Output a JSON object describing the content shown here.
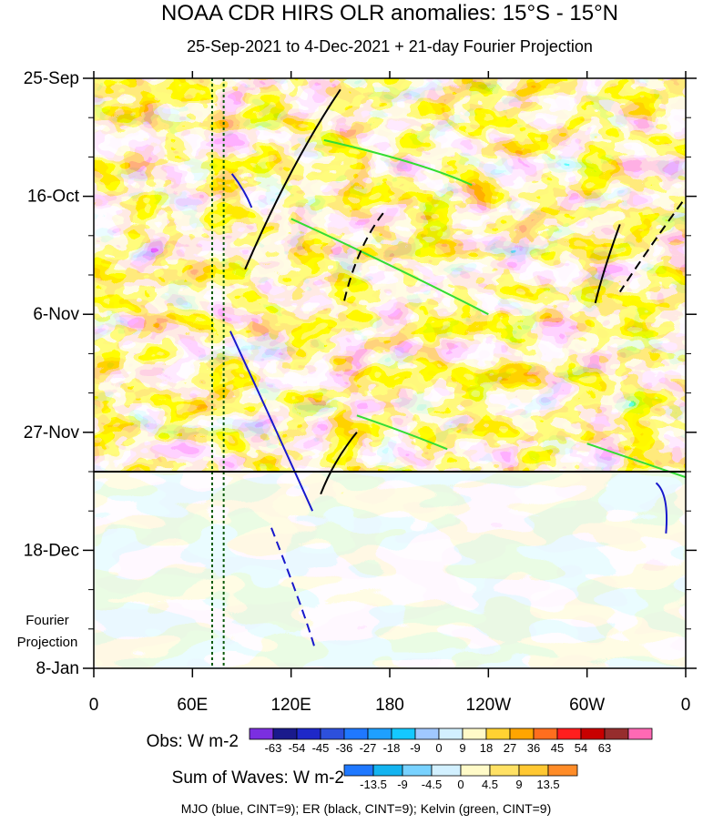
{
  "chart_data": {
    "type": "heatmap",
    "title": "NOAA CDR HIRS OLR anomalies: 15°S - 15°N",
    "subtitle": "25-Sep-2021 to 4-Dec-2021 + 21-day Fourier Projection",
    "x_ticks": [
      "0",
      "60E",
      "120E",
      "180",
      "120W",
      "60W",
      "0"
    ],
    "x_tick_values": [
      0,
      60,
      120,
      180,
      240,
      300,
      360
    ],
    "xlim": [
      0,
      360
    ],
    "y_ticks": [
      "25-Sep",
      "16-Oct",
      "6-Nov",
      "27-Nov",
      "18-Dec",
      "8-Jan"
    ],
    "y_tick_values": [
      0,
      21,
      42,
      63,
      84,
      105
    ],
    "ylim": [
      0,
      105
    ],
    "observed_end_day": 70,
    "projection_label": [
      "Fourier",
      "Projection"
    ],
    "dotted_lines_lon": [
      72,
      79
    ],
    "legend_obs": {
      "label": "Obs: W m-2",
      "ticks": [
        "-63",
        "-54",
        "-45",
        "-36",
        "-27",
        "-18",
        "-9",
        "0",
        "9",
        "18",
        "27",
        "36",
        "45",
        "54",
        "63"
      ],
      "colors": [
        "#7b2fe0",
        "#1a1a8c",
        "#1e28c8",
        "#2d50dc",
        "#1f78ff",
        "#1ea0ff",
        "#14c8ff",
        "#a0c8ff",
        "#d2f0ff",
        "#fffac8",
        "#ffd232",
        "#ffa500",
        "#ff6e1e",
        "#ff1e1e",
        "#c80000",
        "#962d2d",
        "#ff69b4"
      ]
    },
    "legend_waves": {
      "label": "Sum of Waves: W m-2",
      "ticks": [
        "-13.5",
        "-9",
        "-4.5",
        "0",
        "4.5",
        "9",
        "13.5"
      ],
      "colors": [
        "#1f78ff",
        "#14b4f0",
        "#78d2ff",
        "#d2f0ff",
        "#fffac8",
        "#ffe164",
        "#ffc832",
        "#ff8c28"
      ]
    },
    "footnote": "MJO (blue, CINT=9); ER (black, CINT=9); Kelvin (green, CINT=9)",
    "mjo_contours": [
      {
        "lon": [
          84,
          92,
          96
        ],
        "day": [
          17,
          20,
          23
        ],
        "style": "solid"
      },
      {
        "lon": [
          83,
          110,
          133
        ],
        "day": [
          45,
          62,
          77
        ],
        "style": "solid"
      },
      {
        "lon": [
          108,
          128,
          134
        ],
        "day": [
          80,
          95,
          101
        ],
        "style": "dashed"
      },
      {
        "lon": [
          342,
          350,
          348
        ],
        "day": [
          72,
          74,
          81
        ],
        "style": "solid"
      }
    ],
    "er_contours": [
      {
        "lon": [
          150,
          120,
          92
        ],
        "day": [
          2,
          15,
          34
        ],
        "style": "solid"
      },
      {
        "lon": [
          160,
          146,
          138
        ],
        "day": [
          63,
          68,
          74
        ],
        "style": "solid"
      },
      {
        "lon": [
          176,
          160,
          152
        ],
        "day": [
          24,
          30,
          40
        ],
        "style": "dashed"
      },
      {
        "lon": [
          320,
          310,
          305
        ],
        "day": [
          26,
          34,
          40
        ],
        "style": "solid"
      },
      {
        "lon": [
          358,
          338,
          320
        ],
        "day": [
          22,
          30,
          38
        ],
        "style": "dashed"
      }
    ],
    "kelvin_contours": [
      {
        "lon": [
          120,
          180,
          240
        ],
        "day": [
          25,
          33,
          42
        ],
        "style": "solid"
      },
      {
        "lon": [
          140,
          200,
          230
        ],
        "day": [
          11,
          15,
          19
        ],
        "style": "solid"
      },
      {
        "lon": [
          160,
          190,
          215
        ],
        "day": [
          60,
          63,
          66
        ],
        "style": "solid"
      },
      {
        "lon": [
          300,
          330,
          360
        ],
        "day": [
          65,
          68,
          71
        ],
        "style": "solid"
      }
    ]
  }
}
